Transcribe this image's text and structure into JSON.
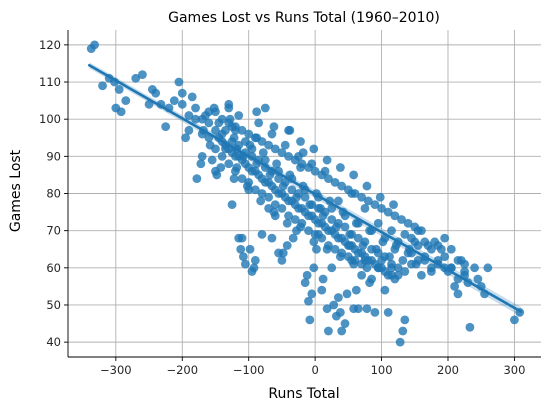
{
  "chart_data": {
    "type": "scatter",
    "title": "Games Lost vs Runs Total (1960–2010)",
    "xlabel": "Runs Total",
    "ylabel": "Games Lost",
    "xlim": [
      -372,
      340
    ],
    "ylim": [
      36,
      124
    ],
    "xticks": [
      -300,
      -200,
      -100,
      0,
      100,
      200,
      300
    ],
    "xtick_labels": [
      "−300",
      "−200",
      "−100",
      "0",
      "100",
      "200",
      "300"
    ],
    "yticks": [
      40,
      50,
      60,
      70,
      80,
      90,
      100,
      110,
      120
    ],
    "ytick_labels": [
      "40",
      "50",
      "60",
      "70",
      "80",
      "90",
      "100",
      "110",
      "120"
    ],
    "grid": true,
    "point_color": "#1f77b4",
    "regression_line": {
      "x": [
        -340,
        310
      ],
      "y": [
        114.5,
        48.2
      ],
      "ci_halfwidth": 0.8
    },
    "points": [
      [
        -337,
        119
      ],
      [
        -332,
        120
      ],
      [
        -320,
        109
      ],
      [
        -310,
        111
      ],
      [
        -300,
        103
      ],
      [
        -292,
        102
      ],
      [
        -302,
        110
      ],
      [
        -295,
        108
      ],
      [
        -285,
        105
      ],
      [
        -270,
        111
      ],
      [
        -260,
        112
      ],
      [
        -250,
        104
      ],
      [
        -245,
        108
      ],
      [
        -240,
        107
      ],
      [
        -232,
        104
      ],
      [
        -225,
        98
      ],
      [
        -220,
        103
      ],
      [
        -212,
        105
      ],
      [
        -205,
        110
      ],
      [
        -200,
        107
      ],
      [
        -195,
        95
      ],
      [
        -185,
        106
      ],
      [
        -180,
        100
      ],
      [
        -178,
        84
      ],
      [
        -172,
        88
      ],
      [
        -170,
        90
      ],
      [
        -168,
        97
      ],
      [
        -165,
        101
      ],
      [
        -158,
        93
      ],
      [
        -152,
        103
      ],
      [
        -150,
        86
      ],
      [
        -148,
        85
      ],
      [
        -140,
        96
      ],
      [
        -135,
        92
      ],
      [
        -130,
        104
      ],
      [
        -128,
        100
      ],
      [
        -125,
        77
      ],
      [
        -122,
        95
      ],
      [
        -120,
        97
      ],
      [
        -118,
        87
      ],
      [
        -115,
        68
      ],
      [
        -112,
        65
      ],
      [
        -110,
        68
      ],
      [
        -108,
        63
      ],
      [
        -105,
        61
      ],
      [
        -100,
        81
      ],
      [
        -98,
        65
      ],
      [
        -95,
        59
      ],
      [
        -92,
        60
      ],
      [
        -90,
        62
      ],
      [
        -88,
        95
      ],
      [
        -80,
        69
      ],
      [
        -75,
        103
      ],
      [
        -70,
        76
      ],
      [
        -65,
        68
      ],
      [
        -60,
        74
      ],
      [
        -55,
        64
      ],
      [
        -50,
        62
      ],
      [
        -48,
        64
      ],
      [
        -42,
        66
      ],
      [
        -38,
        97
      ],
      [
        -33,
        68
      ],
      [
        -28,
        70
      ],
      [
        -22,
        87
      ],
      [
        -18,
        91
      ],
      [
        -15,
        56
      ],
      [
        -12,
        58
      ],
      [
        -10,
        51
      ],
      [
        -8,
        46
      ],
      [
        -5,
        53
      ],
      [
        -2,
        60
      ],
      [
        2,
        65
      ],
      [
        5,
        69
      ],
      [
        8,
        76
      ],
      [
        10,
        54
      ],
      [
        12,
        57
      ],
      [
        18,
        49
      ],
      [
        20,
        43
      ],
      [
        25,
        60
      ],
      [
        28,
        50
      ],
      [
        32,
        47
      ],
      [
        35,
        52
      ],
      [
        38,
        48
      ],
      [
        40,
        43
      ],
      [
        45,
        45
      ],
      [
        48,
        53
      ],
      [
        52,
        66
      ],
      [
        55,
        62
      ],
      [
        58,
        49
      ],
      [
        62,
        54
      ],
      [
        65,
        49
      ],
      [
        70,
        58
      ],
      [
        75,
        62
      ],
      [
        78,
        49
      ],
      [
        82,
        56
      ],
      [
        85,
        57
      ],
      [
        90,
        48
      ],
      [
        95,
        60
      ],
      [
        100,
        62
      ],
      [
        105,
        54
      ],
      [
        110,
        48
      ],
      [
        115,
        60
      ],
      [
        120,
        65
      ],
      [
        125,
        58
      ],
      [
        128,
        40
      ],
      [
        132,
        43
      ],
      [
        135,
        46
      ],
      [
        140,
        64
      ],
      [
        145,
        61
      ],
      [
        150,
        67
      ],
      [
        155,
        70
      ],
      [
        160,
        58
      ],
      [
        165,
        63
      ],
      [
        170,
        66
      ],
      [
        175,
        60
      ],
      [
        180,
        67
      ],
      [
        185,
        62
      ],
      [
        190,
        65
      ],
      [
        195,
        68
      ],
      [
        200,
        59
      ],
      [
        205,
        60
      ],
      [
        210,
        55
      ],
      [
        215,
        53
      ],
      [
        220,
        62
      ],
      [
        225,
        58
      ],
      [
        230,
        56
      ],
      [
        233,
        44
      ],
      [
        240,
        60
      ],
      [
        245,
        57
      ],
      [
        250,
        55
      ],
      [
        255,
        53
      ],
      [
        260,
        60
      ],
      [
        300,
        46
      ],
      [
        308,
        48
      ],
      [
        -190,
        101
      ],
      [
        -160,
        99
      ],
      [
        -150,
        97
      ],
      [
        -145,
        95
      ],
      [
        -140,
        94
      ],
      [
        -135,
        93
      ],
      [
        -130,
        92
      ],
      [
        -125,
        91
      ],
      [
        -120,
        90
      ],
      [
        -115,
        90
      ],
      [
        -110,
        89
      ],
      [
        -105,
        88
      ],
      [
        -100,
        87
      ],
      [
        -95,
        86
      ],
      [
        -90,
        86
      ],
      [
        -85,
        85
      ],
      [
        -80,
        84
      ],
      [
        -75,
        83
      ],
      [
        -70,
        83
      ],
      [
        -65,
        82
      ],
      [
        -60,
        81
      ],
      [
        -55,
        80
      ],
      [
        -50,
        80
      ],
      [
        -45,
        79
      ],
      [
        -40,
        78
      ],
      [
        -35,
        78
      ],
      [
        -30,
        77
      ],
      [
        -25,
        76
      ],
      [
        -20,
        76
      ],
      [
        -15,
        75
      ],
      [
        -10,
        74
      ],
      [
        -5,
        74
      ],
      [
        0,
        73
      ],
      [
        5,
        72
      ],
      [
        10,
        72
      ],
      [
        15,
        71
      ],
      [
        20,
        70
      ],
      [
        25,
        70
      ],
      [
        30,
        69
      ],
      [
        35,
        68
      ],
      [
        40,
        68
      ],
      [
        45,
        67
      ],
      [
        50,
        66
      ],
      [
        55,
        66
      ],
      [
        60,
        65
      ],
      [
        65,
        64
      ],
      [
        70,
        64
      ],
      [
        75,
        63
      ],
      [
        80,
        62
      ],
      [
        85,
        62
      ],
      [
        90,
        61
      ],
      [
        95,
        60
      ],
      [
        100,
        60
      ],
      [
        105,
        59
      ],
      [
        110,
        58
      ],
      [
        115,
        58
      ],
      [
        120,
        57
      ],
      [
        -150,
        102
      ],
      [
        -140,
        100
      ],
      [
        -130,
        99
      ],
      [
        -120,
        98
      ],
      [
        -110,
        97
      ],
      [
        -100,
        96
      ],
      [
        -90,
        95
      ],
      [
        -80,
        94
      ],
      [
        -70,
        93
      ],
      [
        -60,
        92
      ],
      [
        -50,
        91
      ],
      [
        -40,
        90
      ],
      [
        -30,
        89
      ],
      [
        -20,
        88
      ],
      [
        -10,
        87
      ],
      [
        0,
        86
      ],
      [
        10,
        85
      ],
      [
        20,
        84
      ],
      [
        30,
        83
      ],
      [
        40,
        82
      ],
      [
        50,
        81
      ],
      [
        60,
        80
      ],
      [
        70,
        79
      ],
      [
        80,
        78
      ],
      [
        90,
        77
      ],
      [
        100,
        76
      ],
      [
        110,
        75
      ],
      [
        120,
        74
      ],
      [
        130,
        73
      ],
      [
        140,
        72
      ],
      [
        150,
        71
      ],
      [
        160,
        70
      ],
      [
        -170,
        96
      ],
      [
        -160,
        95
      ],
      [
        -150,
        92
      ],
      [
        -140,
        90
      ],
      [
        -130,
        88
      ],
      [
        -120,
        86
      ],
      [
        -110,
        84
      ],
      [
        -100,
        83
      ],
      [
        -90,
        81
      ],
      [
        -80,
        80
      ],
      [
        -70,
        79
      ],
      [
        -60,
        77
      ],
      [
        -50,
        76
      ],
      [
        -40,
        74
      ],
      [
        -30,
        73
      ],
      [
        -20,
        72
      ],
      [
        -10,
        70
      ],
      [
        0,
        69
      ],
      [
        10,
        68
      ],
      [
        20,
        66
      ],
      [
        30,
        65
      ],
      [
        40,
        64
      ],
      [
        50,
        63
      ],
      [
        60,
        62
      ],
      [
        70,
        61
      ],
      [
        -130,
        103
      ],
      [
        -125,
        98
      ],
      [
        -115,
        101
      ],
      [
        -105,
        94
      ],
      [
        -95,
        92
      ],
      [
        -85,
        99
      ],
      [
        -75,
        89
      ],
      [
        -65,
        96
      ],
      [
        -55,
        86
      ],
      [
        -45,
        93
      ],
      [
        -35,
        84
      ],
      [
        -25,
        90
      ],
      [
        -15,
        81
      ],
      [
        -5,
        88
      ],
      [
        5,
        79
      ],
      [
        15,
        86
      ],
      [
        25,
        76
      ],
      [
        35,
        78
      ],
      [
        45,
        74
      ],
      [
        55,
        80
      ],
      [
        65,
        72
      ],
      [
        75,
        76
      ],
      [
        85,
        70
      ],
      [
        95,
        72
      ],
      [
        105,
        68
      ],
      [
        115,
        70
      ],
      [
        125,
        67
      ],
      [
        135,
        69
      ],
      [
        145,
        64
      ],
      [
        155,
        66
      ],
      [
        165,
        62
      ],
      [
        175,
        65
      ],
      [
        185,
        61
      ],
      [
        195,
        63
      ],
      [
        205,
        60
      ],
      [
        215,
        62
      ],
      [
        225,
        59
      ],
      [
        -200,
        104
      ],
      [
        -190,
        97
      ],
      [
        -180,
        103
      ],
      [
        -170,
        100
      ],
      [
        -160,
        102
      ],
      [
        -155,
        89
      ],
      [
        -145,
        99
      ],
      [
        -135,
        97
      ],
      [
        -125,
        94
      ],
      [
        -115,
        93
      ],
      [
        -105,
        91
      ],
      [
        -95,
        90
      ],
      [
        -85,
        89
      ],
      [
        -75,
        87
      ],
      [
        -65,
        86
      ],
      [
        -55,
        84
      ],
      [
        -45,
        83
      ],
      [
        -35,
        81
      ],
      [
        -25,
        80
      ],
      [
        -15,
        79
      ],
      [
        -5,
        77
      ],
      [
        5,
        76
      ],
      [
        15,
        75
      ],
      [
        25,
        73
      ],
      [
        35,
        72
      ],
      [
        45,
        71
      ],
      [
        55,
        69
      ],
      [
        65,
        68
      ],
      [
        75,
        67
      ],
      [
        85,
        65
      ],
      [
        95,
        64
      ],
      [
        105,
        63
      ],
      [
        115,
        61
      ],
      [
        125,
        60
      ],
      [
        135,
        59
      ],
      [
        145,
        68
      ],
      [
        155,
        62
      ],
      [
        165,
        67
      ],
      [
        175,
        59
      ],
      [
        185,
        66
      ],
      [
        195,
        60
      ],
      [
        205,
        65
      ],
      [
        215,
        57
      ],
      [
        225,
        61
      ],
      [
        -118,
        92
      ],
      [
        -108,
        90
      ],
      [
        -98,
        93
      ],
      [
        -88,
        88
      ],
      [
        -78,
        91
      ],
      [
        -68,
        85
      ],
      [
        -58,
        88
      ],
      [
        -48,
        82
      ],
      [
        -38,
        85
      ],
      [
        -28,
        79
      ],
      [
        -18,
        82
      ],
      [
        -8,
        77
      ],
      [
        2,
        80
      ],
      [
        12,
        74
      ],
      [
        22,
        78
      ],
      [
        32,
        71
      ],
      [
        42,
        75
      ],
      [
        52,
        69
      ],
      [
        62,
        72
      ],
      [
        72,
        66
      ],
      [
        82,
        70
      ],
      [
        92,
        65
      ],
      [
        102,
        67
      ],
      [
        112,
        63
      ],
      [
        122,
        66
      ],
      [
        132,
        62
      ],
      [
        142,
        65
      ],
      [
        152,
        61
      ],
      [
        -88,
        102
      ],
      [
        -62,
        98
      ],
      [
        -40,
        97
      ],
      [
        -22,
        94
      ],
      [
        -2,
        92
      ],
      [
        18,
        89
      ],
      [
        38,
        87
      ],
      [
        58,
        85
      ],
      [
        78,
        82
      ],
      [
        98,
        79
      ],
      [
        118,
        77
      ],
      [
        -142,
        87
      ],
      [
        -122,
        84
      ],
      [
        -102,
        82
      ],
      [
        -82,
        78
      ],
      [
        -62,
        75
      ],
      [
        -42,
        72
      ],
      [
        -22,
        71
      ],
      [
        -2,
        67
      ],
      [
        18,
        65
      ],
      [
        38,
        63
      ],
      [
        58,
        61
      ],
      [
        78,
        60
      ]
    ]
  }
}
